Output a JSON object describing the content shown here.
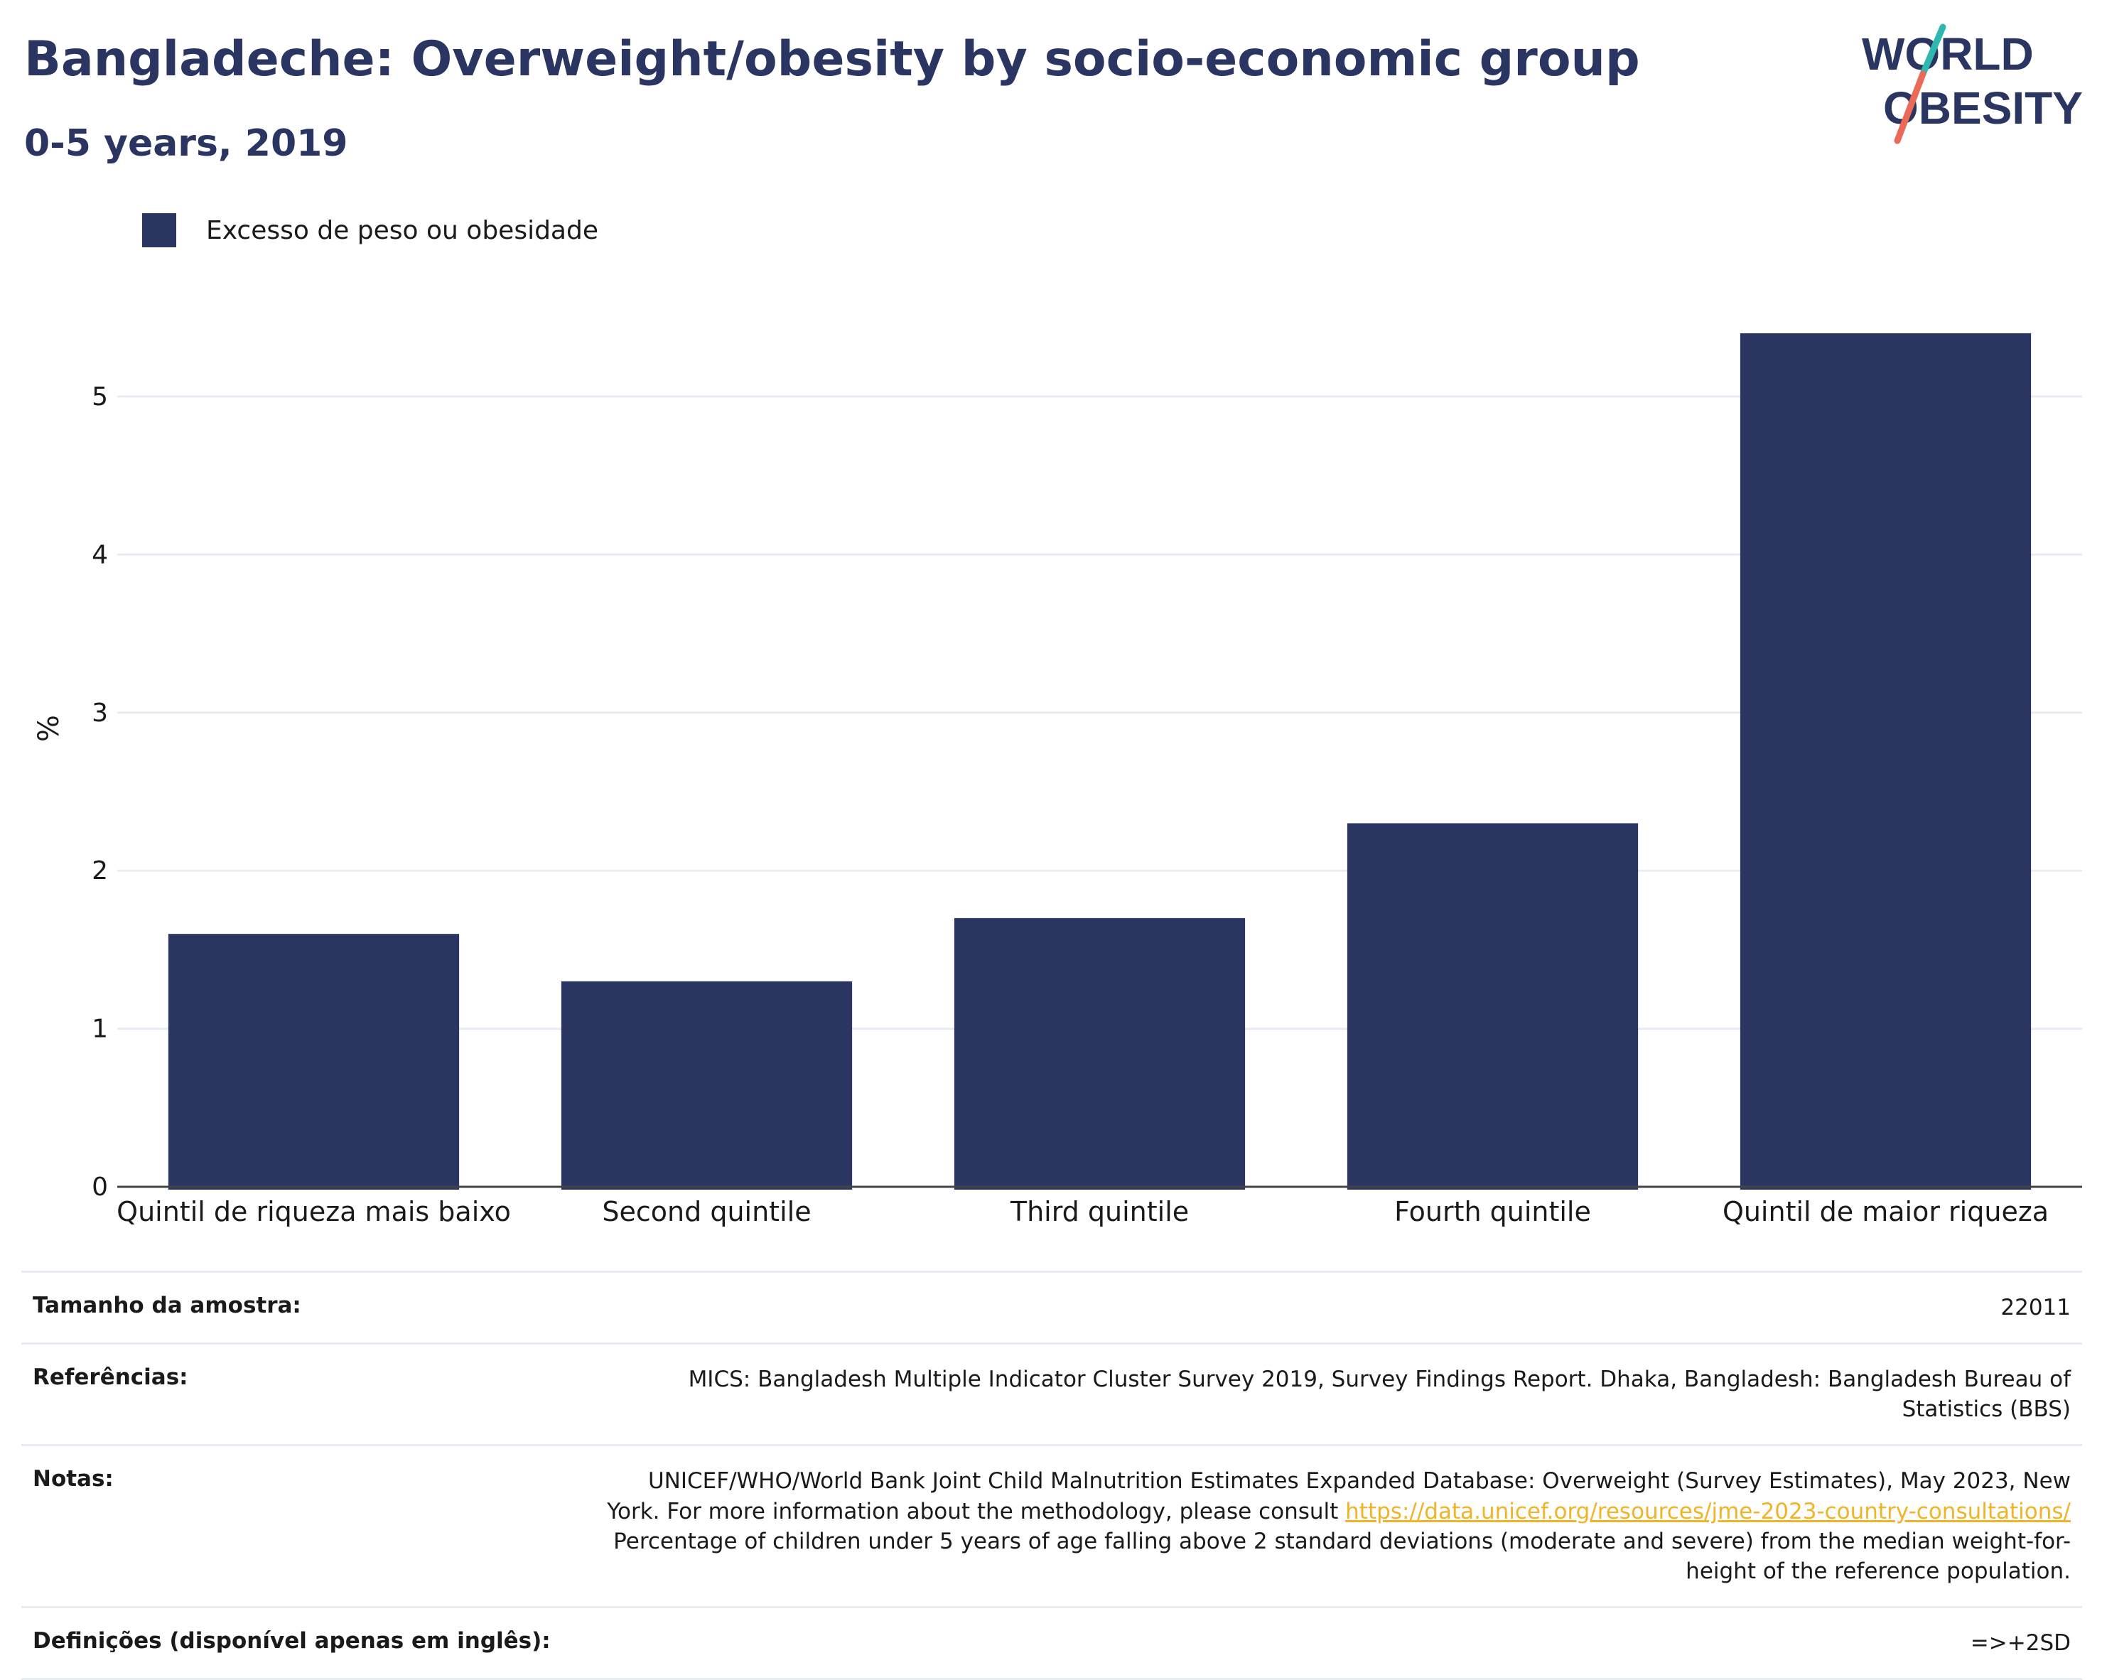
{
  "header": {
    "title": "Bangladeche: Overweight/obesity by socio-economic group",
    "subtitle": "0-5 years, 2019"
  },
  "logo": {
    "line1": "WORLD",
    "line2": "OBESITY",
    "accent_teal": "#2fb8b0",
    "accent_coral": "#ea6a57"
  },
  "colors": {
    "bar": "#2a3561",
    "title": "#2a3561",
    "grid": "#e8ecf3",
    "link": "#f0b429"
  },
  "legend": {
    "label": "Excesso de peso ou obesidade"
  },
  "chart_data": {
    "type": "bar",
    "categories": [
      "Quintil de riqueza mais baixo",
      "Second quintile",
      "Third quintile",
      "Fourth quintile",
      "Quintil de maior riqueza"
    ],
    "series": [
      {
        "name": "Excesso de peso ou obesidade",
        "values": [
          1.6,
          1.3,
          1.7,
          2.3,
          5.4
        ]
      }
    ],
    "ylabel": "%",
    "xlabel": "",
    "ylim": [
      0,
      5.8
    ],
    "yticks": [
      0,
      1,
      2,
      3,
      4,
      5
    ],
    "grid": true,
    "legend_position": "top-left"
  },
  "info": {
    "sample_label": "Tamanho da amostra:",
    "sample_value": "22011",
    "references_label": "Referências:",
    "references_value": "MICS: Bangladesh Multiple Indicator Cluster Survey 2019, Survey Findings Report. Dhaka, Bangladesh: Bangladesh Bureau of Statistics (BBS)",
    "notes_label": "Notas:",
    "notes_text_1": "UNICEF/WHO/World Bank Joint Child Malnutrition Estimates Expanded Database: Overweight (Survey Estimates), May 2023, New York. For more information about the methodology, please consult",
    "notes_link": "https://data.unicef.org/resources/jme-2023-country-consultations/",
    "notes_text_2": "Percentage of children under 5 years of age falling above 2 standard deviations (moderate and severe) from the median weight-for-height of the reference population.",
    "definitions_label": "Definições (disponível apenas em inglês):",
    "definitions_value": "=>+2SD"
  }
}
